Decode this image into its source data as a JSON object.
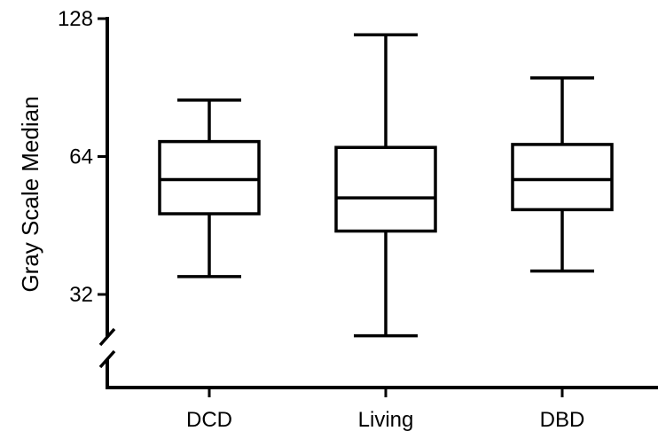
{
  "chart_data": {
    "type": "box",
    "title": "",
    "xlabel": "",
    "ylabel": "Gray Scale Median",
    "y_scale": "log2",
    "y_axis_break": true,
    "y_ticks": [
      128,
      64,
      32
    ],
    "ylim": [
      22,
      128
    ],
    "grid": false,
    "legend": "none",
    "categories": [
      "DCD",
      "Living",
      "DBD"
    ],
    "boxes": [
      {
        "name": "DCD",
        "whisker_low": 35,
        "q1": 48,
        "median": 57,
        "q3": 69,
        "whisker_high": 85
      },
      {
        "name": "Living",
        "whisker_low": 26,
        "q1": 44,
        "median": 52,
        "q3": 67,
        "whisker_high": 118
      },
      {
        "name": "DBD",
        "whisker_low": 36,
        "q1": 49,
        "median": 57,
        "q3": 68,
        "whisker_high": 95
      }
    ]
  }
}
